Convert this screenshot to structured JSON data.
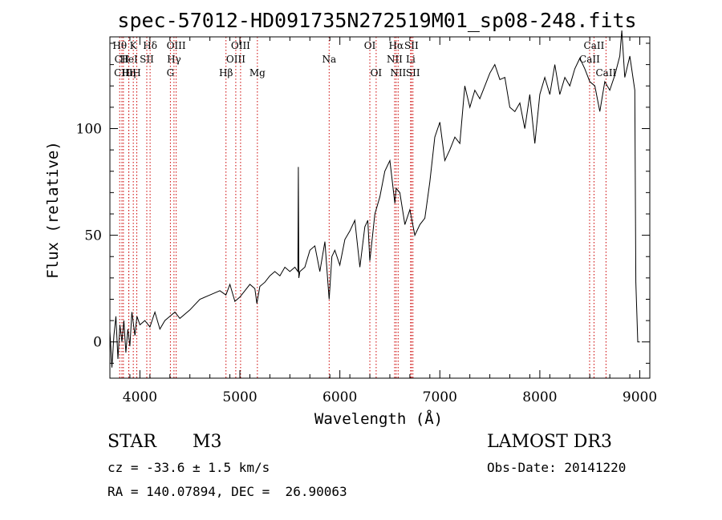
{
  "chart_data": {
    "type": "line",
    "title": "spec-57012-HD091735N272519M01_sp08-248.fits",
    "xlabel": "Wavelength (Å)",
    "ylabel": "Flux (relative)",
    "xlim": [
      3700,
      9100
    ],
    "ylim": [
      -17,
      143
    ],
    "x_ticks": [
      4000,
      5000,
      6000,
      7000,
      8000,
      9000
    ],
    "y_ticks": [
      0,
      50,
      100
    ],
    "series": [
      {
        "name": "spectrum",
        "x": [
          3700,
          3720,
          3740,
          3760,
          3780,
          3800,
          3820,
          3840,
          3860,
          3880,
          3900,
          3920,
          3950,
          3970,
          4000,
          4050,
          4100,
          4150,
          4200,
          4250,
          4300,
          4350,
          4400,
          4500,
          4600,
          4700,
          4800,
          4860,
          4900,
          4950,
          5000,
          5050,
          5100,
          5150,
          5170,
          5200,
          5250,
          5300,
          5350,
          5400,
          5450,
          5500,
          5550,
          5580,
          5585,
          5590,
          5600,
          5650,
          5700,
          5750,
          5800,
          5850,
          5880,
          5893,
          5920,
          5950,
          6000,
          6050,
          6100,
          6150,
          6200,
          6250,
          6280,
          6300,
          6350,
          6400,
          6450,
          6500,
          6550,
          6563,
          6600,
          6650,
          6700,
          6750,
          6800,
          6850,
          6900,
          6950,
          7000,
          7050,
          7100,
          7150,
          7200,
          7250,
          7300,
          7350,
          7400,
          7450,
          7500,
          7550,
          7600,
          7650,
          7700,
          7750,
          7800,
          7850,
          7900,
          7950,
          8000,
          8050,
          8100,
          8150,
          8200,
          8250,
          8300,
          8350,
          8400,
          8450,
          8500,
          8550,
          8600,
          8650,
          8700,
          8750,
          8800,
          8820,
          8850,
          8900,
          8950,
          8960,
          8980,
          9000
        ],
        "values": [
          5,
          -12,
          3,
          12,
          -8,
          8,
          0,
          10,
          -5,
          6,
          -2,
          14,
          3,
          12,
          8,
          10,
          7,
          14,
          6,
          10,
          12,
          14,
          11,
          15,
          20,
          22,
          24,
          22,
          27,
          19,
          21,
          24,
          27,
          25,
          18,
          26,
          28,
          31,
          33,
          31,
          35,
          33,
          35,
          33,
          82,
          30,
          33,
          35,
          43,
          45,
          33,
          47,
          28,
          20,
          40,
          43,
          36,
          48,
          52,
          57,
          35,
          54,
          57,
          38,
          60,
          68,
          80,
          85,
          65,
          72,
          70,
          55,
          62,
          50,
          55,
          58,
          75,
          96,
          103,
          85,
          90,
          96,
          93,
          120,
          110,
          118,
          114,
          120,
          126,
          130,
          123,
          124,
          110,
          108,
          112,
          100,
          116,
          93,
          116,
          124,
          116,
          130,
          116,
          124,
          120,
          128,
          133,
          128,
          122,
          120,
          108,
          122,
          118,
          125,
          134,
          146,
          124,
          134,
          118,
          28,
          0,
          0
        ]
      }
    ],
    "lines": [
      {
        "name": "Hθ",
        "wavelength": 3798,
        "row": 1
      },
      {
        "name": "CII",
        "wavelength": 3820,
        "row": 2
      },
      {
        "name": "CIII",
        "wavelength": 3835,
        "row": 3
      },
      {
        "name": "HeI",
        "wavelength": 3889,
        "row": 2
      },
      {
        "name": "Hη",
        "wavelength": 3889,
        "row": 3
      },
      {
        "name": "K",
        "wavelength": 3934,
        "row": 1
      },
      {
        "name": "H",
        "wavelength": 3969,
        "row": 3
      },
      {
        "name": "SII",
        "wavelength": 4069,
        "row": 2
      },
      {
        "name": "Hδ",
        "wavelength": 4102,
        "row": 1
      },
      {
        "name": "G",
        "wavelength": 4305,
        "row": 3
      },
      {
        "name": "Hγ",
        "wavelength": 4341,
        "row": 2
      },
      {
        "name": "OIII",
        "wavelength": 4363,
        "row": 1
      },
      {
        "name": "Hβ",
        "wavelength": 4861,
        "row": 3
      },
      {
        "name": "OIII",
        "wavelength": 4959,
        "row": 2
      },
      {
        "name": "OIII",
        "wavelength": 5007,
        "row": 1
      },
      {
        "name": "Mg",
        "wavelength": 5175,
        "row": 3
      },
      {
        "name": "Na",
        "wavelength": 5893,
        "row": 2
      },
      {
        "name": "OI",
        "wavelength": 6300,
        "row": 1
      },
      {
        "name": "OI",
        "wavelength": 6363,
        "row": 3
      },
      {
        "name": "NII",
        "wavelength": 6548,
        "row": 2
      },
      {
        "name": "Hα",
        "wavelength": 6563,
        "row": 1
      },
      {
        "name": "NII",
        "wavelength": 6583,
        "row": 3
      },
      {
        "name": "SII",
        "wavelength": 6716,
        "row": 1
      },
      {
        "name": "Li",
        "wavelength": 6708,
        "row": 2
      },
      {
        "name": "SII",
        "wavelength": 6731,
        "row": 3
      },
      {
        "name": "CaII",
        "wavelength": 8498,
        "row": 2
      },
      {
        "name": "CaII",
        "wavelength": 8542,
        "row": 1
      },
      {
        "name": "CaII",
        "wavelength": 8662,
        "row": 3
      }
    ],
    "line_color": "#cc0000"
  },
  "info": {
    "class_label": "STAR",
    "subclass": "M3",
    "survey": "LAMOST DR3",
    "cz": "cz = -33.6 ± 1.5 km/s",
    "obs_date": "Obs-Date: 20141220",
    "coords": "RA = 140.07894, DEC =  26.90063"
  }
}
